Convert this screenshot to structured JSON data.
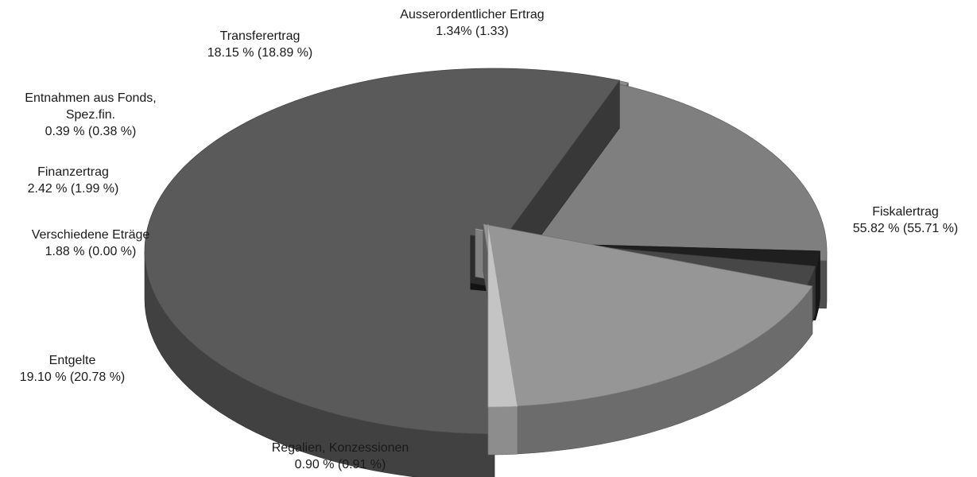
{
  "chart_data": {
    "type": "pie",
    "three_d": true,
    "exploded": true,
    "colors": {
      "fiskal": "#5a5a5a",
      "regalien": "#8c8c8c",
      "entgelte": "#7f7f7f",
      "verschiedene": "#1f1f1f",
      "finanz": "#474747",
      "fonds": "#d0d0d0",
      "transfer": "#969696",
      "ausser": "#c4c4c4"
    },
    "slices": [
      {
        "key": "fiskal",
        "name": "Fiskalertrag",
        "value": 55.82,
        "pct_text": "55.82 % (55.71 %)"
      },
      {
        "key": "regalien",
        "name": "Regalien, Konzessionen",
        "value": 0.9,
        "pct_text": "0.90 % (0.91 %)"
      },
      {
        "key": "entgelte",
        "name": "Entgelte",
        "value": 19.1,
        "pct_text": "19.10 % (20.78 %)"
      },
      {
        "key": "verschiedene",
        "name": "Verschiedene Eträge",
        "value": 1.88,
        "pct_text": "1.88 % (0.00 %)"
      },
      {
        "key": "finanz",
        "name": "Finanzertrag",
        "value": 2.42,
        "pct_text": "2.42 % (1.99 %)"
      },
      {
        "key": "fonds",
        "name": "Entnahmen aus Fonds,",
        "name2": "Spez.fin.",
        "value": 0.39,
        "pct_text": "0.39 % (0.38 %)"
      },
      {
        "key": "transfer",
        "name": "Transferertrag",
        "value": 18.15,
        "pct_text": "18.15 % (18.89 %)"
      },
      {
        "key": "ausser",
        "name": "Ausserordentlicher Ertrag",
        "value": 1.34,
        "pct_text": "1.34% (1.33)"
      }
    ]
  }
}
